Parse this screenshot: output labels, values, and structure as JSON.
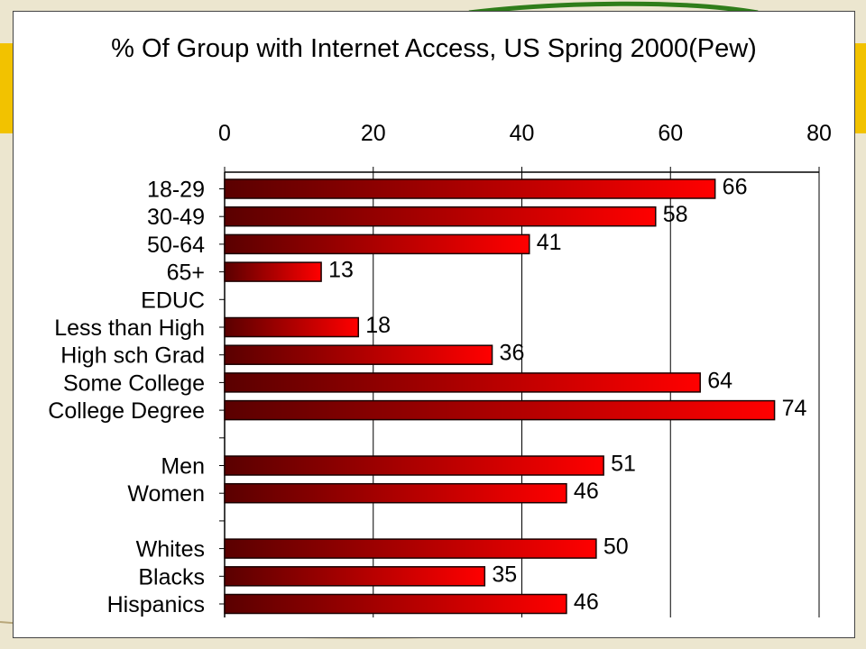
{
  "chart_data": {
    "type": "bar",
    "orientation": "horizontal",
    "title": "% Of Group with Internet Access, US Spring 2000(Pew)",
    "xlabel": "",
    "ylabel": "",
    "xlim": [
      0,
      80
    ],
    "x_ticks": [
      0,
      20,
      40,
      60,
      80
    ],
    "x_axis_position": "top",
    "grid": "vertical",
    "categories": [
      "18-29",
      "30-49",
      "50-64",
      "65+",
      "EDUC",
      "Less than High",
      "High sch Grad",
      "Some College",
      "College Degree",
      "",
      "Men",
      "Women",
      "",
      "Whites",
      "Blacks",
      "Hispanics"
    ],
    "values": [
      66,
      58,
      41,
      13,
      null,
      18,
      36,
      64,
      74,
      null,
      51,
      46,
      null,
      50,
      35,
      46
    ],
    "data_labels": [
      "66",
      "58",
      "41",
      "13",
      "",
      "18",
      "36",
      "64",
      "74",
      "",
      "51",
      "46",
      "",
      "50",
      "35",
      "46"
    ],
    "colors": {
      "bar_dark": "#5a0000",
      "bar_light": "#ff0000",
      "bar_edge": "#1a0000",
      "grid": "#000000"
    }
  }
}
